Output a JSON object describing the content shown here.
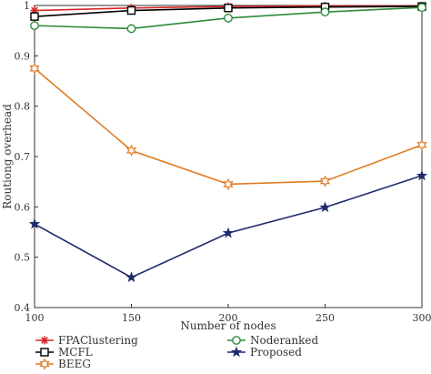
{
  "chart_data": {
    "type": "line",
    "title": "",
    "xlabel": "Number of nodes",
    "ylabel": "Routiong overhead",
    "x": [
      100,
      150,
      200,
      250,
      300
    ],
    "xticks": [
      "100",
      "150",
      "200",
      "250",
      "300"
    ],
    "yticks": [
      "0.4",
      "0.5",
      "0.6",
      "0.7",
      "0.8",
      "0.9",
      "1"
    ],
    "xlim": [
      100,
      300
    ],
    "ylim": [
      0.4,
      1.0
    ],
    "grid": false,
    "legend_position": "bottom",
    "series": [
      {
        "name": "FPAClustering",
        "values": [
          0.99,
          0.995,
          0.998,
          0.999,
          0.999
        ],
        "color": "#d62728",
        "marker": "asterisk"
      },
      {
        "name": "MCFL",
        "values": [
          0.978,
          0.99,
          0.995,
          0.997,
          0.998
        ],
        "color": "#000000",
        "marker": "square"
      },
      {
        "name": "BEEG",
        "values": [
          0.875,
          0.712,
          0.645,
          0.651,
          0.723
        ],
        "color": "#e07b24",
        "marker": "hexagram"
      },
      {
        "name": "Noderanked",
        "values": [
          0.96,
          0.954,
          0.975,
          0.987,
          0.996
        ],
        "color": "#2e8b3a",
        "marker": "circle"
      },
      {
        "name": "Proposed",
        "values": [
          0.566,
          0.46,
          0.548,
          0.599,
          0.662
        ],
        "color": "#1f2a6b",
        "marker": "star"
      }
    ]
  }
}
